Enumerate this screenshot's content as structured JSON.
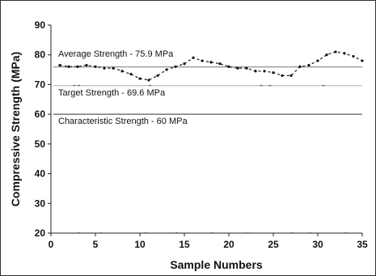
{
  "chart_data": {
    "type": "line",
    "title": "",
    "xlabel": "Sample Numbers",
    "ylabel": "Compressive Strength (MPa)",
    "xlim": [
      0,
      35
    ],
    "ylim": [
      20,
      90
    ],
    "xticks": [
      0,
      5,
      10,
      15,
      20,
      25,
      30,
      35
    ],
    "yticks": [
      20,
      30,
      40,
      50,
      60,
      70,
      80,
      90
    ],
    "grid": false,
    "series": [
      {
        "x": [
          1,
          2,
          3,
          4,
          5,
          6,
          7,
          8,
          9,
          10,
          11,
          12,
          13,
          14,
          15,
          16,
          17,
          18,
          19,
          20,
          21,
          22,
          23,
          24,
          25,
          26,
          27,
          28,
          29,
          30,
          31,
          32,
          33,
          34,
          35
        ],
        "values": [
          76.5,
          76,
          76,
          76.5,
          76,
          75.5,
          75.5,
          74.5,
          73.5,
          72,
          71.5,
          73,
          75,
          76,
          77,
          79,
          78,
          77.5,
          77,
          76,
          75.5,
          75.5,
          74.5,
          74.5,
          74,
          73,
          73,
          76,
          76.5,
          78,
          80,
          81,
          80.5,
          79.5,
          78
        ]
      }
    ],
    "reference_lines": [
      {
        "label": "Average Strength - 75.9 MPa",
        "value": 75.9,
        "color": "#777777"
      },
      {
        "label": "Target Strength - 69.6 MPa",
        "value": 69.6,
        "color": "#aaaaaa"
      },
      {
        "label": "Characteristic Strength - 60 MPa",
        "value": 60,
        "color": "#333333"
      }
    ]
  }
}
